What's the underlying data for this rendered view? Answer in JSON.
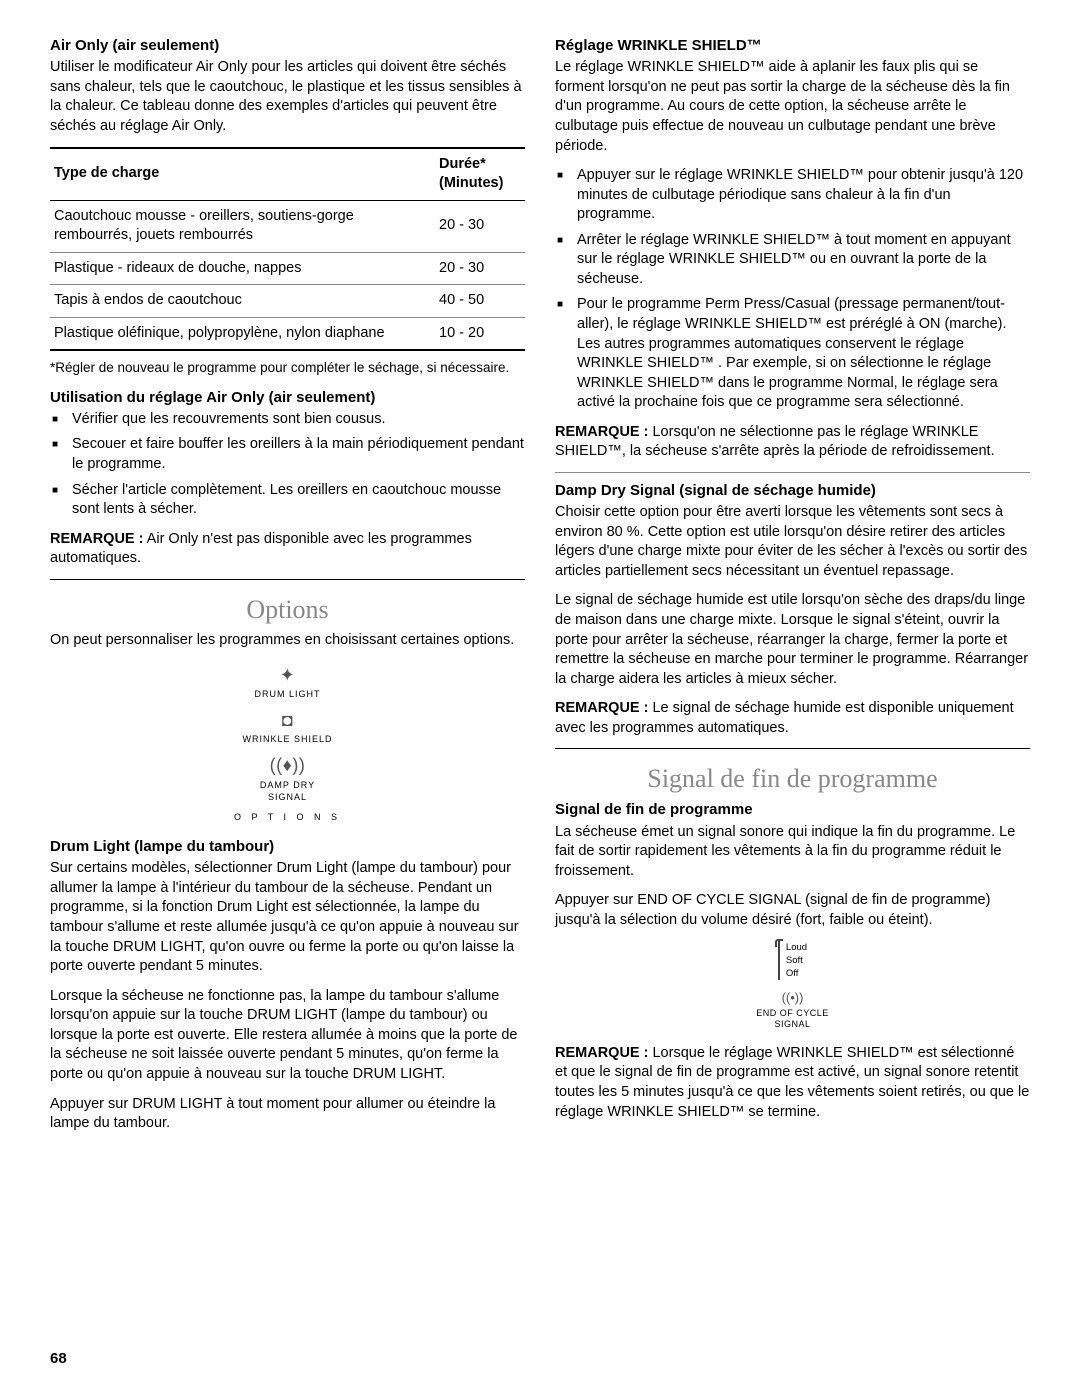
{
  "pageNumber": "68",
  "left": {
    "airOnly": {
      "title": "Air Only (air seulement)",
      "intro": "Utiliser le modificateur Air Only pour les articles qui doivent être séchés sans chaleur, tels que le caoutchouc, le plastique et les tissus sensibles à la chaleur. Ce tableau donne des exemples d'articles qui peuvent être séchés au réglage Air Only.",
      "table": {
        "headers": [
          "Type de charge",
          "Durée* (Minutes)"
        ],
        "rows": [
          [
            "Caoutchouc mousse - oreillers, soutiens-gorge rembourrés, jouets rembourrés",
            "20 - 30"
          ],
          [
            "Plastique - rideaux de douche, nappes",
            "20 - 30"
          ],
          [
            "Tapis à endos de caoutchouc",
            "40 - 50"
          ],
          [
            "Plastique oléfinique, polypropylène, nylon diaphane",
            "10 - 20"
          ]
        ]
      },
      "footnote": "*Régler de nouveau le programme pour compléter le séchage, si nécessaire."
    },
    "usage": {
      "title": "Utilisation du réglage Air Only (air seulement)",
      "bullets": [
        "Vérifier que les recouvrements sont bien cousus.",
        "Secouer et faire bouffer les oreillers à la main périodiquement pendant le programme.",
        "Sécher l'article complètement. Les oreillers en caoutchouc mousse sont lents à sécher."
      ],
      "noteLabel": "REMARQUE :",
      "noteText": " Air Only n'est pas disponible avec les programmes automatiques."
    },
    "options": {
      "heading": "Options",
      "intro": "On peut personnaliser les programmes en choisissant certaines options.",
      "fig": {
        "i1": "DRUM LIGHT",
        "i2": "WRINKLE SHIELD",
        "i3a": "DAMP DRY",
        "i3b": "SIGNAL",
        "caption": "O P T I O N S"
      }
    },
    "drumLight": {
      "title": "Drum Light (lampe du tambour)",
      "p1": "Sur certains modèles, sélectionner Drum Light (lampe du tambour) pour allumer la lampe à l'intérieur du tambour de la sécheuse. Pendant un programme, si la fonction Drum Light est sélectionnée, la lampe du tambour s'allume et reste allumée jusqu'à ce qu'on appuie à nouveau sur la touche DRUM LIGHT, qu'on ouvre ou ferme la porte ou qu'on laisse la porte ouverte pendant 5 minutes.",
      "p2": "Lorsque la sécheuse ne fonctionne pas, la lampe du tambour s'allume lorsqu'on appuie sur la touche DRUM LIGHT (lampe du tambour) ou lorsque la porte est ouverte. Elle restera allumée à moins que la porte de la sécheuse ne soit laissée ouverte pendant 5 minutes, qu'on ferme la porte ou qu'on appuie à nouveau sur la touche DRUM LIGHT.",
      "p3": "Appuyer sur DRUM LIGHT à tout moment pour allumer ou éteindre la lampe du tambour."
    }
  },
  "right": {
    "wrinkle": {
      "title": "Réglage WRINKLE SHIELD™",
      "intro": "Le réglage WRINKLE SHIELD™ aide à aplanir les faux plis qui se forment lorsqu'on ne peut pas sortir la charge de la sécheuse dès la fin d'un programme. Au cours de cette option, la sécheuse arrête le culbutage puis effectue de nouveau un culbutage pendant une brève période.",
      "bullets": [
        "Appuyer sur le réglage WRINKLE SHIELD™ pour obtenir jusqu'à 120 minutes de culbutage périodique sans chaleur à la fin d'un programme.",
        "Arrêter le réglage WRINKLE SHIELD™ à tout moment en appuyant sur le réglage WRINKLE SHIELD™ ou en ouvrant la porte de la sécheuse.",
        "Pour le programme Perm Press/Casual (pressage permanent/tout-aller), le réglage WRINKLE SHIELD™ est préréglé à ON (marche). Les autres programmes automatiques conservent le réglage WRINKLE SHIELD™ . Par exemple, si on sélectionne le réglage WRINKLE SHIELD™ dans le programme Normal, le réglage sera activé la prochaine fois que ce programme sera sélectionné."
      ],
      "noteLabel": "REMARQUE :",
      "noteText": " Lorsqu'on ne sélectionne pas le réglage WRINKLE SHIELD™, la sécheuse s'arrête après la période de refroidissement."
    },
    "dampDry": {
      "title": "Damp Dry Signal (signal de séchage humide)",
      "p1": "Choisir cette option pour être averti lorsque les vêtements sont secs à environ 80 %. Cette option est utile lorsqu'on désire retirer des articles légers d'une charge mixte pour éviter de les sécher à l'excès ou sortir des articles partiellement secs nécessitant un éventuel repassage.",
      "p2": "Le signal de séchage humide est utile lorsqu'on sèche des draps/du linge de maison dans une charge mixte. Lorsque le signal s'éteint, ouvrir la porte pour arrêter la sécheuse, réarranger la charge, fermer la porte et remettre la sécheuse en marche pour terminer le programme. Réarranger la charge aidera les articles à mieux sécher.",
      "noteLabel": "REMARQUE :",
      "noteText": " Le signal de séchage humide est disponible uniquement avec les programmes automatiques."
    },
    "signal": {
      "heading": "Signal de fin de programme",
      "title": "Signal de fin de programme",
      "p1": "La sécheuse émet un signal sonore qui indique la fin du programme. Le fait de sortir rapidement les vêtements à la fin du programme réduit le froissement.",
      "p2": "Appuyer sur END OF CYCLE SIGNAL (signal de fin de programme) jusqu'à la sélection du volume désiré (fort, faible ou éteint).",
      "fig": {
        "loud": "Loud",
        "soft": "Soft",
        "off": "Off",
        "l1": "END OF CYCLE",
        "l2": "SIGNAL"
      },
      "noteLabel": "REMARQUE :",
      "noteText": " Lorsque le réglage WRINKLE SHIELD™ est sélectionné et que le signal de fin de programme est activé, un signal sonore retentit toutes les 5 minutes jusqu'à ce que les vêtements soient retirés, ou que le réglage WRINKLE SHIELD™ se termine."
    }
  }
}
